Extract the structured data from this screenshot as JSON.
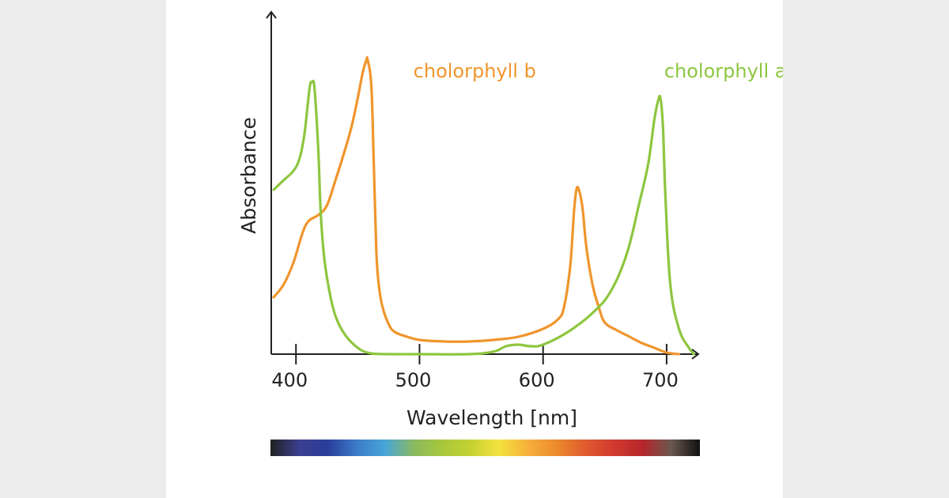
{
  "chart_data": {
    "type": "line",
    "xlabel": "Wavelength [nm]",
    "ylabel": "Absorbance",
    "xlim": [
      380,
      725
    ],
    "ylim": [
      0,
      1.0
    ],
    "xticks": [
      400,
      500,
      600,
      700
    ],
    "tick_labels": [
      "400",
      "500",
      "600",
      "700"
    ],
    "grid": false,
    "colors": {
      "chlorophyll_a": "#8dc63f",
      "chlorophyll_b": "#f0952c",
      "axis": "#222222"
    },
    "series": [
      {
        "name": "cholorphyll b",
        "key": "chlorophyll_b",
        "x": [
          382,
          390,
          398,
          405,
          410,
          418,
          425,
          432,
          440,
          445,
          450,
          454,
          457,
          458,
          461,
          463,
          465,
          467,
          470,
          475,
          480,
          490,
          500,
          520,
          540,
          560,
          580,
          600,
          612,
          617,
          622,
          625,
          627,
          629,
          632,
          635,
          640,
          645,
          650,
          660,
          670,
          680,
          690,
          700,
          710
        ],
        "y": [
          0.18,
          0.22,
          0.29,
          0.38,
          0.42,
          0.44,
          0.47,
          0.55,
          0.65,
          0.72,
          0.81,
          0.89,
          0.93,
          0.93,
          0.85,
          0.6,
          0.33,
          0.22,
          0.15,
          0.095,
          0.07,
          0.055,
          0.045,
          0.04,
          0.04,
          0.045,
          0.055,
          0.08,
          0.11,
          0.15,
          0.28,
          0.45,
          0.52,
          0.52,
          0.46,
          0.34,
          0.22,
          0.15,
          0.1,
          0.075,
          0.055,
          0.035,
          0.02,
          0.005,
          0.0
        ]
      },
      {
        "name": "cholorphyll a",
        "key": "chlorophyll_a",
        "x": [
          382,
          390,
          398,
          403,
          407,
          411,
          413,
          415,
          418,
          420,
          423,
          428,
          433,
          440,
          450,
          460,
          475,
          500,
          540,
          560,
          570,
          580,
          590,
          600,
          620,
          640,
          655,
          668,
          678,
          685,
          690,
          693,
          695,
          697,
          699,
          703,
          710,
          718,
          722
        ],
        "y": [
          0.52,
          0.55,
          0.58,
          0.62,
          0.7,
          0.84,
          0.86,
          0.84,
          0.65,
          0.45,
          0.3,
          0.18,
          0.11,
          0.06,
          0.02,
          0.003,
          0.0,
          0.0,
          0.0,
          0.008,
          0.025,
          0.03,
          0.025,
          0.03,
          0.07,
          0.13,
          0.2,
          0.32,
          0.48,
          0.6,
          0.74,
          0.8,
          0.81,
          0.72,
          0.5,
          0.22,
          0.08,
          0.02,
          0.0
        ]
      }
    ],
    "annotations": [
      {
        "text": "cholorphyll b",
        "series": "chlorophyll_b",
        "x": 495,
        "y": 0.93
      },
      {
        "text": "cholorphyll a",
        "series": "chlorophyll_a",
        "x": 698,
        "y": 0.93
      }
    ],
    "spectrum_bar": {
      "stops": [
        "#222222",
        "#3b3f8f",
        "#2a3e9a",
        "#3d7ac8",
        "#47a6d8",
        "#8ab962",
        "#a7c83a",
        "#c6d132",
        "#f4e23e",
        "#f6b03a",
        "#ec8a2c",
        "#e05a2f",
        "#d13a2e",
        "#b6262b",
        "#6a5850",
        "#111111"
      ]
    }
  }
}
